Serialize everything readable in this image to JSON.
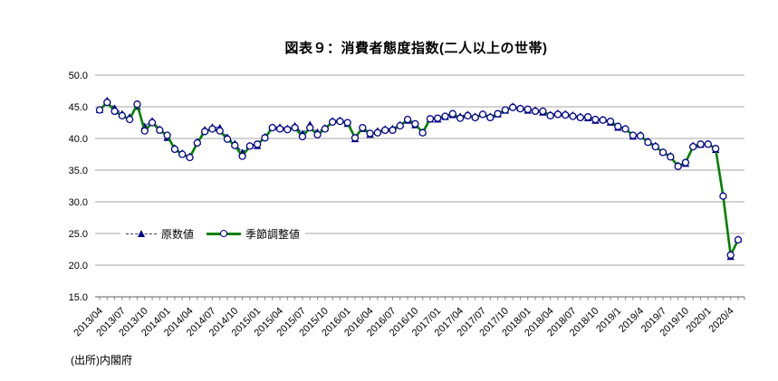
{
  "source_note": "(出所)内閣府",
  "colors": {
    "raw_series": "#00008B",
    "adjusted_series": "#008000",
    "marker_fill": "#FFFFFF",
    "gridline": "#A6A6A6",
    "axis_line": "#808080",
    "text": "#000000"
  },
  "chart_data": {
    "type": "line",
    "title": "図表９：消費者態度指数(二人以上の世帯)",
    "xlabel": "",
    "ylabel": "",
    "ylim": [
      15.0,
      50.0
    ],
    "ytick_step": 5.0,
    "yticklabels": [
      "15.0",
      "20.0",
      "25.0",
      "30.0",
      "35.0",
      "40.0",
      "45.0",
      "50.0"
    ],
    "grid": true,
    "legend_position": "inside-left-at-25-line",
    "x": [
      "2013/04",
      "2013/05",
      "2013/06",
      "2013/07",
      "2013/08",
      "2013/09",
      "2013/10",
      "2013/11",
      "2013/12",
      "2014/01",
      "2014/02",
      "2014/03",
      "2014/04",
      "2014/05",
      "2014/06",
      "2014/07",
      "2014/08",
      "2014/09",
      "2014/10",
      "2014/11",
      "2014/12",
      "2015/01",
      "2015/02",
      "2015/03",
      "2015/04",
      "2015/05",
      "2015/06",
      "2015/07",
      "2015/08",
      "2015/09",
      "2015/10",
      "2015/11",
      "2015/12",
      "2016/01",
      "2016/02",
      "2016/03",
      "2016/04",
      "2016/05",
      "2016/06",
      "2016/07",
      "2016/08",
      "2016/09",
      "2016/10",
      "2016/11",
      "2016/12",
      "2017/01",
      "2017/02",
      "2017/03",
      "2017/04",
      "2017/05",
      "2017/06",
      "2017/07",
      "2017/08",
      "2017/09",
      "2017/10",
      "2017/11",
      "2017/12",
      "2018/01",
      "2018/02",
      "2018/03",
      "2018/04",
      "2018/05",
      "2018/06",
      "2018/07",
      "2018/08",
      "2018/09",
      "2018/10",
      "2018/11",
      "2018/12",
      "2019/01",
      "2019/02",
      "2019/03",
      "2019/04",
      "2019/05",
      "2019/06",
      "2019/07",
      "2019/08",
      "2019/09",
      "2019/10",
      "2019/11",
      "2019/12",
      "2020/01",
      "2020/02",
      "2020/03",
      "2020/04",
      "2020/05"
    ],
    "xticklabels_shown": [
      "2013/04",
      "2013/07",
      "2013/10",
      "2014/01",
      "2014/04",
      "2014/07",
      "2014/10",
      "2015/01",
      "2015/04",
      "2015/07",
      "2015/10",
      "2016/01",
      "2016/04",
      "2016/07",
      "2016/10",
      "2017/01",
      "2017/04",
      "2017/07",
      "2017/10",
      "2018/01",
      "2018/04",
      "2018/07",
      "2018/10",
      "2019/1",
      "2019/4",
      "2019/7",
      "2019/10",
      "2020/1",
      "2020/4"
    ],
    "xtick_every_n_months": 3,
    "series": [
      {
        "name": "原数値",
        "marker": "triangle",
        "line_style": "dashed",
        "color": "#00008B",
        "values": [
          44.5,
          46.0,
          44.8,
          43.9,
          43.4,
          45.0,
          41.9,
          42.8,
          41.5,
          40.1,
          38.5,
          37.7,
          37.2,
          39.5,
          41.4,
          41.8,
          41.7,
          40.2,
          39.2,
          37.8,
          38.9,
          38.8,
          40.3,
          41.8,
          41.8,
          41.6,
          42.0,
          40.8,
          42.2,
          41.0,
          41.7,
          42.8,
          42.9,
          42.3,
          39.9,
          41.5,
          40.6,
          41.2,
          41.5,
          41.6,
          42.2,
          42.8,
          42.1,
          41.0,
          43.0,
          43.0,
          43.4,
          43.7,
          43.5,
          43.8,
          43.5,
          43.9,
          43.5,
          43.8,
          44.4,
          45.1,
          44.8,
          44.4,
          44.5,
          44.1,
          43.8,
          44.0,
          43.9,
          43.7,
          43.5,
          43.2,
          42.8,
          43.0,
          42.5,
          41.7,
          41.6,
          40.3,
          40.6,
          39.6,
          38.9,
          37.9,
          37.3,
          35.8,
          36.0,
          38.9,
          39.0,
          39.2,
          38.2,
          31.1,
          21.3,
          24.1
        ]
      },
      {
        "name": "季節調整値",
        "marker": "circle",
        "line_style": "solid",
        "color": "#008000",
        "values": [
          44.5,
          45.7,
          44.3,
          43.6,
          43.0,
          45.4,
          41.2,
          42.5,
          41.3,
          40.5,
          38.3,
          37.5,
          37.0,
          39.3,
          41.1,
          41.5,
          41.2,
          39.9,
          38.9,
          37.2,
          38.8,
          39.1,
          40.1,
          41.7,
          41.5,
          41.4,
          41.7,
          40.3,
          41.7,
          40.6,
          41.5,
          42.6,
          42.7,
          42.5,
          40.1,
          41.7,
          40.8,
          40.9,
          41.3,
          41.3,
          42.0,
          43.0,
          42.3,
          40.9,
          43.1,
          43.2,
          43.5,
          43.9,
          43.2,
          43.6,
          43.3,
          43.8,
          43.3,
          43.9,
          44.5,
          44.9,
          44.7,
          44.6,
          44.3,
          44.3,
          43.6,
          43.8,
          43.7,
          43.5,
          43.3,
          43.4,
          43.0,
          42.9,
          42.7,
          41.9,
          41.5,
          40.5,
          40.4,
          39.4,
          38.7,
          37.8,
          37.1,
          35.6,
          36.2,
          38.7,
          39.1,
          39.1,
          38.4,
          30.9,
          21.6,
          24.0
        ]
      }
    ]
  }
}
